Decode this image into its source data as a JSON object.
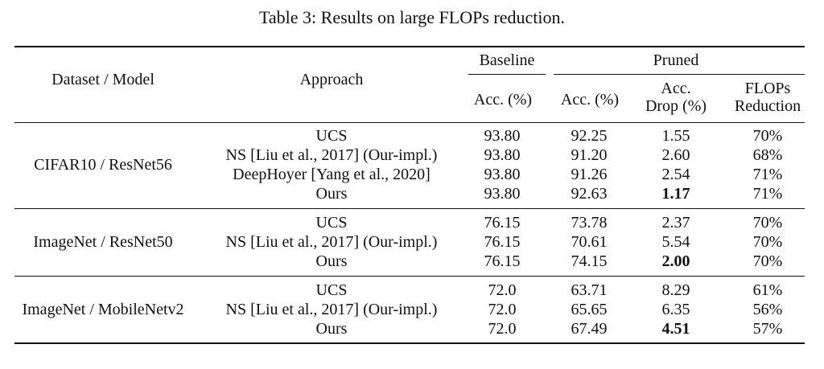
{
  "caption": "Table 3: Results on large FLOPs reduction.",
  "header": {
    "dataset_model": "Dataset / Model",
    "approach": "Approach",
    "baseline": "Baseline",
    "pruned": "Pruned",
    "baseline_acc": "Acc. (%)",
    "pruned_acc": "Acc. (%)",
    "acc_drop_line1": "Acc.",
    "acc_drop_line2": "Drop (%)",
    "flops_line1": "FLOPs",
    "flops_line2": "Reduction"
  },
  "groups": [
    {
      "dataset_model": "CIFAR10 / ResNet56",
      "rows": [
        {
          "approach": "UCS",
          "baseline_acc": "93.80",
          "pruned_acc": "92.25",
          "acc_drop": "1.55",
          "flops": "70%",
          "best": false
        },
        {
          "approach": "NS [Liu et al., 2017] (Our-impl.)",
          "baseline_acc": "93.80",
          "pruned_acc": "91.20",
          "acc_drop": "2.60",
          "flops": "68%",
          "best": false
        },
        {
          "approach": "DeepHoyer [Yang et al., 2020]",
          "baseline_acc": "93.80",
          "pruned_acc": "91.26",
          "acc_drop": "2.54",
          "flops": "71%",
          "best": false
        },
        {
          "approach": "Ours",
          "baseline_acc": "93.80",
          "pruned_acc": "92.63",
          "acc_drop": "1.17",
          "flops": "71%",
          "best": true
        }
      ]
    },
    {
      "dataset_model": "ImageNet / ResNet50",
      "rows": [
        {
          "approach": "UCS",
          "baseline_acc": "76.15",
          "pruned_acc": "73.78",
          "acc_drop": "2.37",
          "flops": "70%",
          "best": false
        },
        {
          "approach": "NS [Liu et al., 2017] (Our-impl.)",
          "baseline_acc": "76.15",
          "pruned_acc": "70.61",
          "acc_drop": "5.54",
          "flops": "70%",
          "best": false
        },
        {
          "approach": "Ours",
          "baseline_acc": "76.15",
          "pruned_acc": "74.15",
          "acc_drop": "2.00",
          "flops": "70%",
          "best": true
        }
      ]
    },
    {
      "dataset_model": "ImageNet / MobileNetv2",
      "rows": [
        {
          "approach": "UCS",
          "baseline_acc": "72.0",
          "pruned_acc": "63.71",
          "acc_drop": "8.29",
          "flops": "61%",
          "best": false
        },
        {
          "approach": "NS [Liu et al., 2017] (Our-impl.)",
          "baseline_acc": "72.0",
          "pruned_acc": "65.65",
          "acc_drop": "6.35",
          "flops": "56%",
          "best": false
        },
        {
          "approach": "Ours",
          "baseline_acc": "72.0",
          "pruned_acc": "67.49",
          "acc_drop": "4.51",
          "flops": "57%",
          "best": true
        }
      ]
    }
  ]
}
